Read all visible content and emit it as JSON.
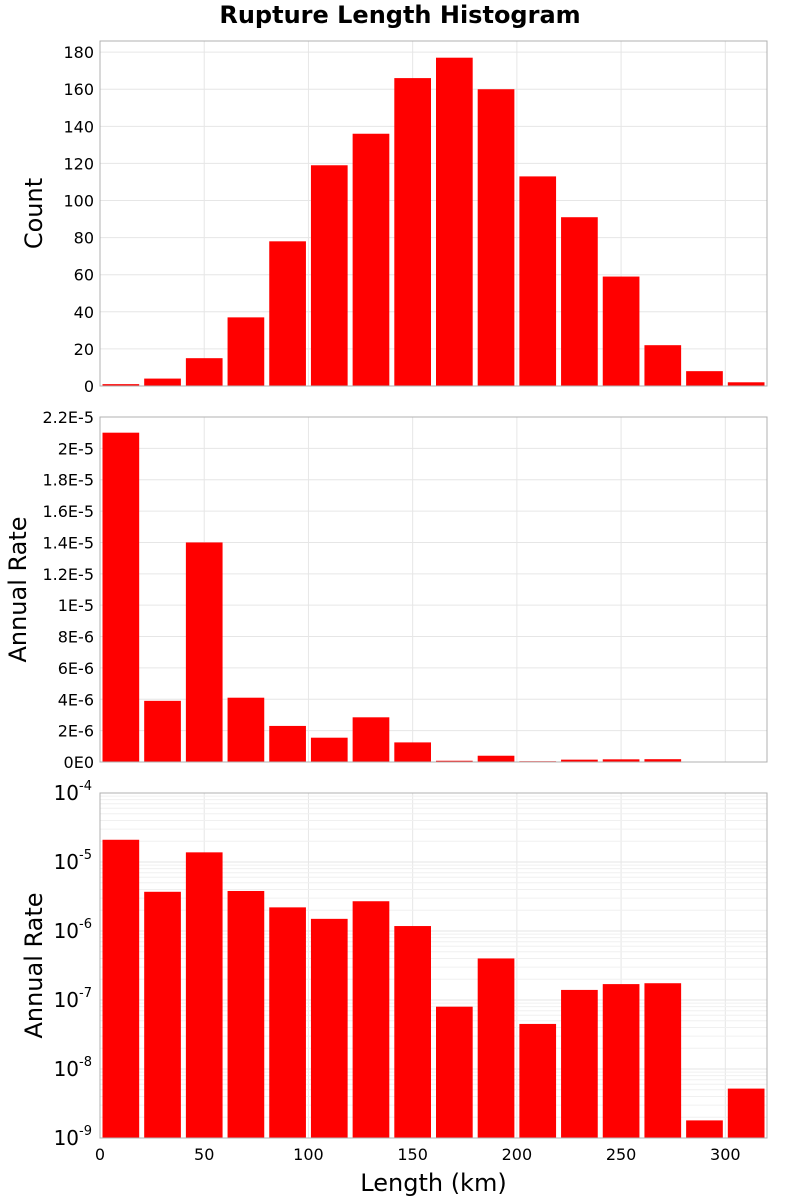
{
  "colors": {
    "bar": "#ff0000",
    "background": "#ffffff"
  },
  "title": "Rupture Length Histogram",
  "chart_data": [
    {
      "type": "bar",
      "title": "Rupture Length Histogram",
      "ylabel": "Count",
      "xlabel": "",
      "yscale": "linear",
      "xlim": [
        0,
        320
      ],
      "ylim": [
        0,
        186
      ],
      "y_ticks": [
        0,
        20,
        40,
        60,
        80,
        100,
        120,
        140,
        160,
        180
      ],
      "y_tick_labels": [
        "0",
        "20",
        "40",
        "60",
        "80",
        "100",
        "120",
        "140",
        "160",
        "180"
      ],
      "grid": true,
      "bin_width": 20,
      "x": [
        10,
        30,
        50,
        70,
        90,
        110,
        130,
        150,
        170,
        190,
        210,
        230,
        250,
        270,
        290,
        310
      ],
      "values": [
        1,
        4,
        15,
        37,
        78,
        119,
        136,
        166,
        177,
        160,
        113,
        91,
        59,
        22,
        8,
        2
      ]
    },
    {
      "type": "bar",
      "title": "",
      "ylabel": "Annual Rate",
      "xlabel": "",
      "yscale": "linear",
      "xlim": [
        0,
        320
      ],
      "ylim": [
        0,
        2.2e-05
      ],
      "y_ticks": [
        0,
        2e-06,
        4e-06,
        6e-06,
        8e-06,
        1e-05,
        1.2e-05,
        1.4e-05,
        1.6e-05,
        1.8e-05,
        2e-05,
        2.2e-05
      ],
      "y_tick_labels": [
        "0E0",
        "2E-6",
        "4E-6",
        "6E-6",
        "8E-6",
        "1E-5",
        "1.2E-5",
        "1.4E-5",
        "1.6E-5",
        "1.8E-5",
        "2E-5",
        "2.2E-5"
      ],
      "grid": true,
      "bin_width": 20,
      "x": [
        10,
        30,
        50,
        70,
        90,
        110,
        130,
        150,
        170,
        190,
        210,
        230,
        250,
        270,
        290,
        310
      ],
      "values": [
        2.1e-05,
        3.9e-06,
        1.4e-05,
        4.1e-06,
        2.3e-06,
        1.55e-06,
        2.85e-06,
        1.25e-06,
        8e-08,
        4e-07,
        5e-08,
        1.5e-07,
        1.7e-07,
        1.8e-07,
        2e-09,
        5e-09
      ]
    },
    {
      "type": "bar",
      "title": "",
      "ylabel": "Annual Rate",
      "xlabel": "Length (km)",
      "yscale": "log",
      "xlim": [
        0,
        320
      ],
      "ylim": [
        1e-09,
        0.0001
      ],
      "y_ticks": [
        -9,
        -8,
        -7,
        -6,
        -5,
        -4
      ],
      "y_tick_base": "10",
      "y_tick_exponents": [
        "-9",
        "-8",
        "-7",
        "-6",
        "-5",
        "-4"
      ],
      "x_ticks": [
        0,
        50,
        100,
        150,
        200,
        250,
        300
      ],
      "x_tick_labels": [
        "0",
        "50",
        "100",
        "150",
        "200",
        "250",
        "300"
      ],
      "grid": true,
      "bin_width": 20,
      "x": [
        10,
        30,
        50,
        70,
        90,
        110,
        130,
        150,
        170,
        190,
        210,
        230,
        250,
        270,
        290,
        310
      ],
      "values": [
        2.1e-05,
        3.7e-06,
        1.38e-05,
        3.8e-06,
        2.2e-06,
        1.5e-06,
        2.7e-06,
        1.18e-06,
        8e-08,
        4e-07,
        4.5e-08,
        1.4e-07,
        1.7e-07,
        1.75e-07,
        1.8e-09,
        5.2e-09
      ]
    }
  ]
}
